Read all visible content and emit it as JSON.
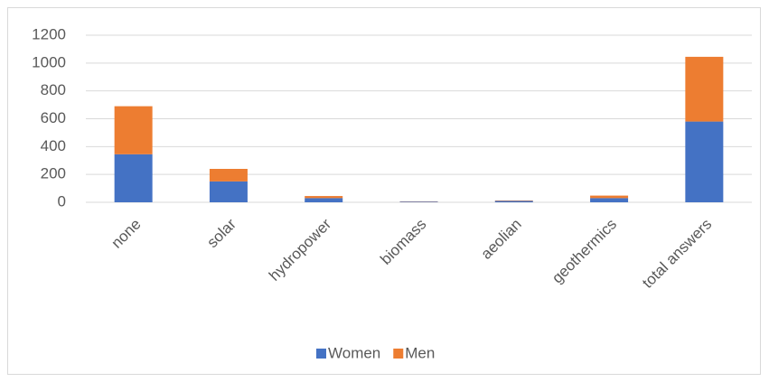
{
  "chart_data": {
    "type": "stacked_bar",
    "categories": [
      "none",
      "solar",
      "hydropower",
      "biomass",
      "aeolian",
      "geothermics",
      "total answers"
    ],
    "series": [
      {
        "name": "Women",
        "color": "#4472c4",
        "values": [
          345,
          150,
          30,
          5,
          10,
          30,
          580
        ]
      },
      {
        "name": "Men",
        "color": "#ed7d31",
        "values": [
          345,
          90,
          15,
          2,
          3,
          18,
          465
        ]
      }
    ],
    "ylim": [
      0,
      1200
    ],
    "yticks": [
      0,
      200,
      400,
      600,
      800,
      1000,
      1200
    ],
    "grid": true,
    "legend": "bottom"
  }
}
